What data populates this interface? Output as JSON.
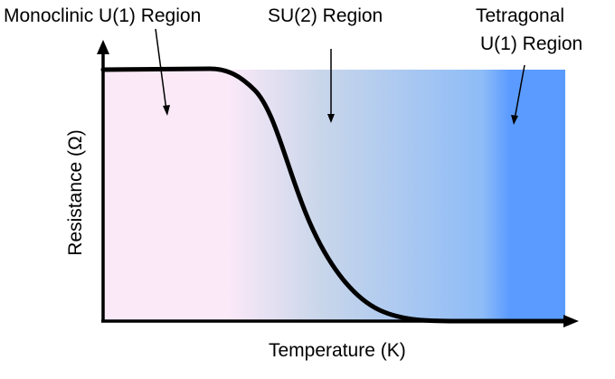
{
  "labels": {
    "monoclinic": "Monoclinic U(1) Region",
    "su2": "SU(2) Region",
    "tetragonal_line1": "Tetragonal",
    "tetragonal_line2": "U(1) Region",
    "x_axis": "Temperature (K)",
    "y_axis": "Resistance (Ω)"
  },
  "colors": {
    "region_left": "#fbe9f8",
    "region_mid": "#c9d6ea",
    "region_right": "#5b9bff",
    "curve": "#000000",
    "axes": "#000000"
  },
  "curve": {
    "shape": "sigmoid",
    "high_plateau": "low temperature",
    "low_plateau": "high temperature"
  }
}
